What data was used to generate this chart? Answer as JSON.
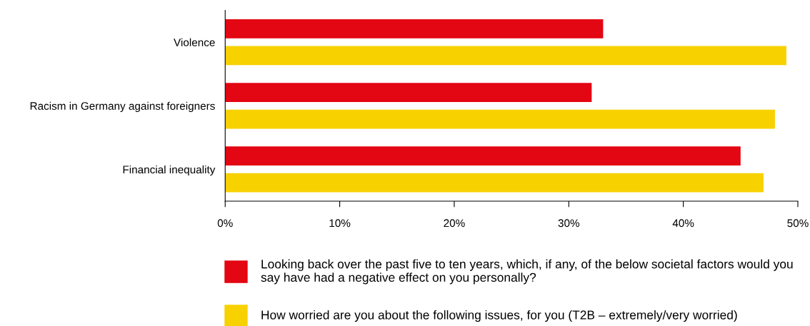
{
  "chart_data": {
    "type": "bar",
    "orientation": "horizontal",
    "categories": [
      "Violence",
      "Racism in Germany against foreigners",
      "Financial inequality"
    ],
    "series": [
      {
        "name": "Looking back over the past five to ten years, which, if any, of the below societal factors would you say have had a negative effect on you personally?",
        "color": "#e30613",
        "values": [
          33,
          32,
          45
        ]
      },
      {
        "name": "How worried are you about the following issues, for you (T2B – extremely/very worried)",
        "color": "#f7d100",
        "values": [
          49,
          48,
          47
        ]
      }
    ],
    "xlim": [
      0,
      50
    ],
    "xticks": [
      {
        "value": 0,
        "label": "0%"
      },
      {
        "value": 10,
        "label": "10%"
      },
      {
        "value": 20,
        "label": "20%"
      },
      {
        "value": 30,
        "label": "30%"
      },
      {
        "value": 40,
        "label": "40%"
      },
      {
        "value": 50,
        "label": "50%"
      }
    ],
    "grid": false,
    "legend": "bottom"
  }
}
